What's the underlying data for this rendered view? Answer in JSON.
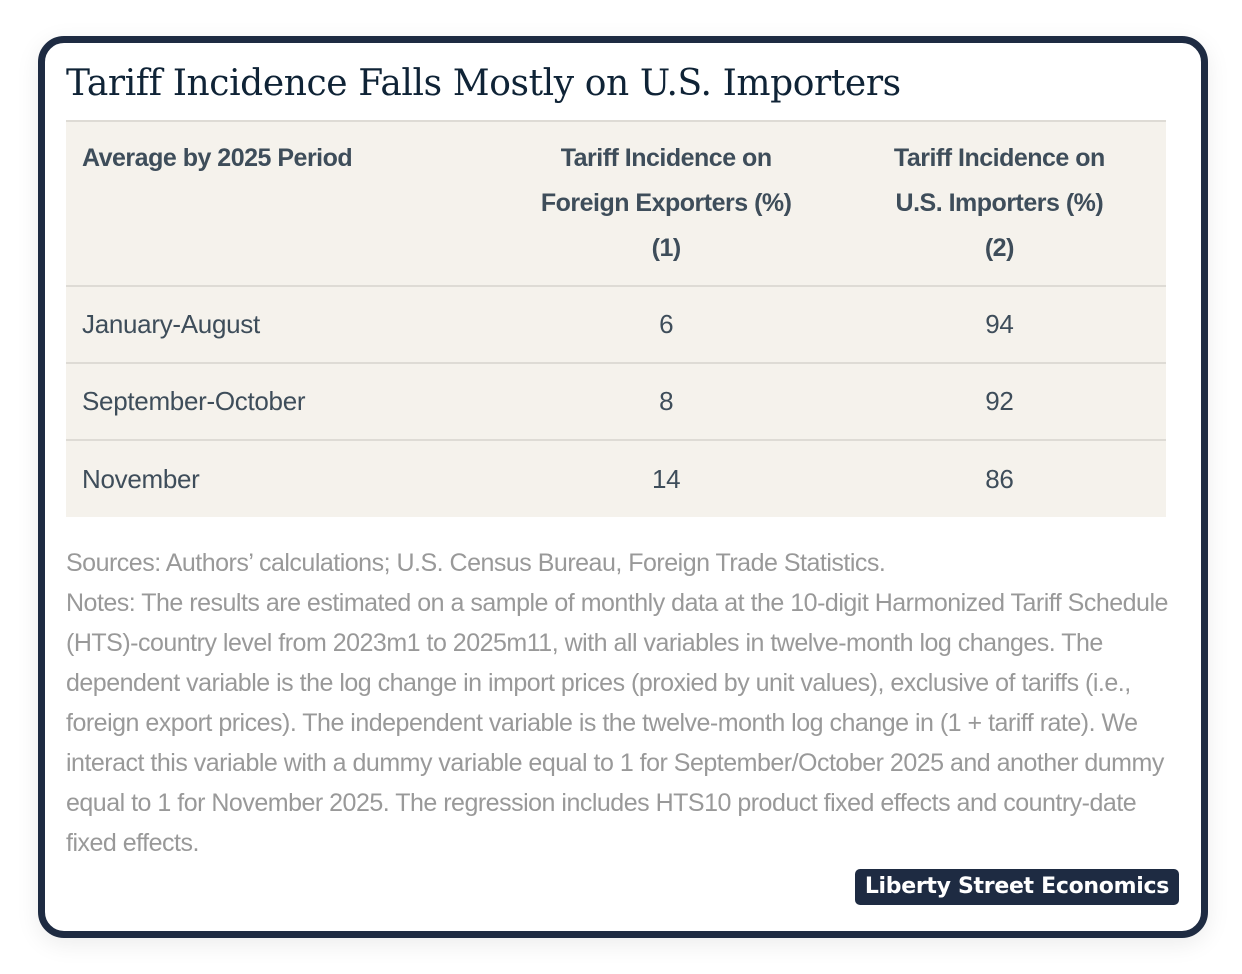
{
  "title": "Tariff Incidence Falls Mostly on U.S. Importers",
  "table": {
    "headers": [
      {
        "lines": [
          "Average by 2025 Period"
        ]
      },
      {
        "lines": [
          "Tariff Incidence on",
          "Foreign Exporters (%)",
          "(1)"
        ]
      },
      {
        "lines": [
          "Tariff Incidence on",
          "U.S. Importers (%)",
          "(2)"
        ]
      }
    ],
    "rows": [
      {
        "period": "January-August",
        "foreign_exporters": "6",
        "us_importers": "94"
      },
      {
        "period": "September-October",
        "foreign_exporters": "8",
        "us_importers": "92"
      },
      {
        "period": "November",
        "foreign_exporters": "14",
        "us_importers": "86"
      }
    ]
  },
  "sources": "Sources: Authors’ calculations; U.S. Census Bureau, Foreign Trade Statistics.",
  "notes": "Notes: The results are estimated on a sample of monthly data at the 10-digit Harmonized Tariff Schedule (HTS)-country level from 2023m1 to 2025m11, with all variables in twelve-month log changes. The dependent variable is the log change in import prices (proxied by unit values), exclusive of tariffs (i.e., foreign export prices). The independent variable is the twelve-month log change in (1 + tariff rate). We interact this variable with a dummy variable equal to 1 for September/October 2025 and another dummy equal to 1 for November 2025. The regression includes HTS10 product fixed effects and country-date fixed effects.",
  "badge": "Liberty Street Economics",
  "colors": {
    "frame": "#1e2b42",
    "table_bg": "#f5f2ec",
    "title": "#0f2336",
    "table_text": "#3e4d5a",
    "notes_text": "#999999"
  }
}
